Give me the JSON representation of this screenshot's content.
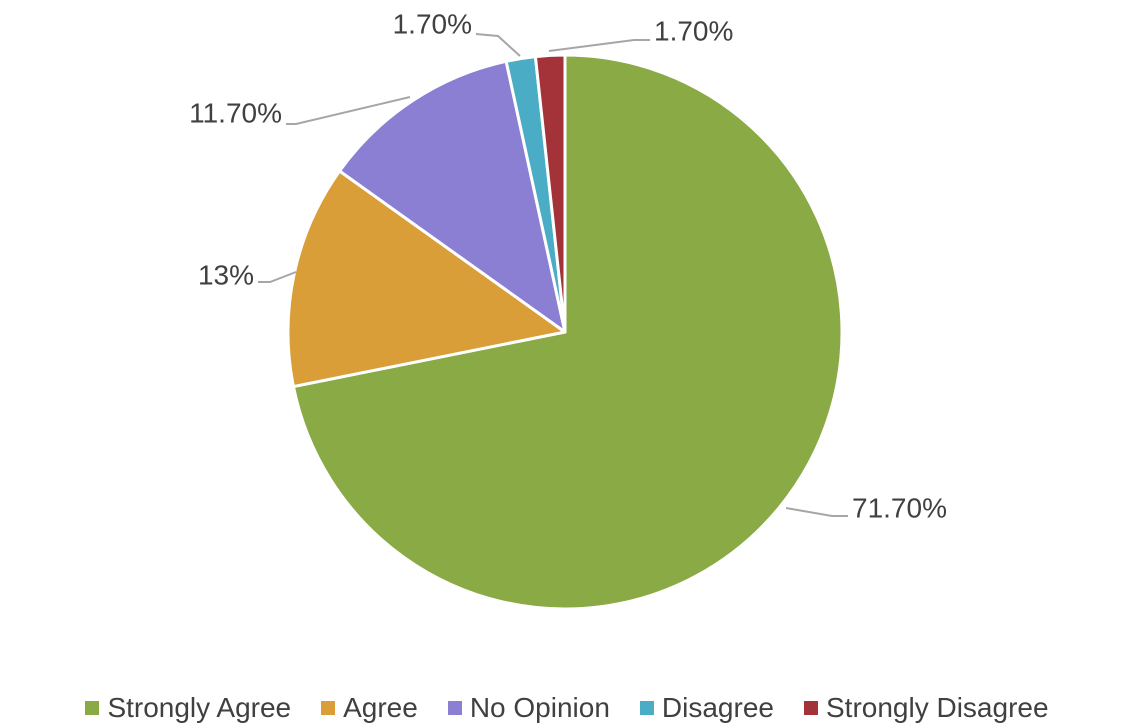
{
  "chart_data": {
    "type": "pie",
    "title": "",
    "categories": [
      "Strongly Agree",
      "Agree",
      "No Opinion",
      "Disagree",
      "Strongly Disagree"
    ],
    "values": [
      71.7,
      13,
      11.7,
      1.7,
      1.7
    ],
    "data_labels": [
      "71.70%",
      "13%",
      "11.70%",
      "1.70%",
      "1.70%"
    ],
    "colors": [
      "#8AAA45",
      "#D99E38",
      "#8B7FD3",
      "#4BACC6",
      "#A33338"
    ],
    "legend_position": "bottom"
  }
}
